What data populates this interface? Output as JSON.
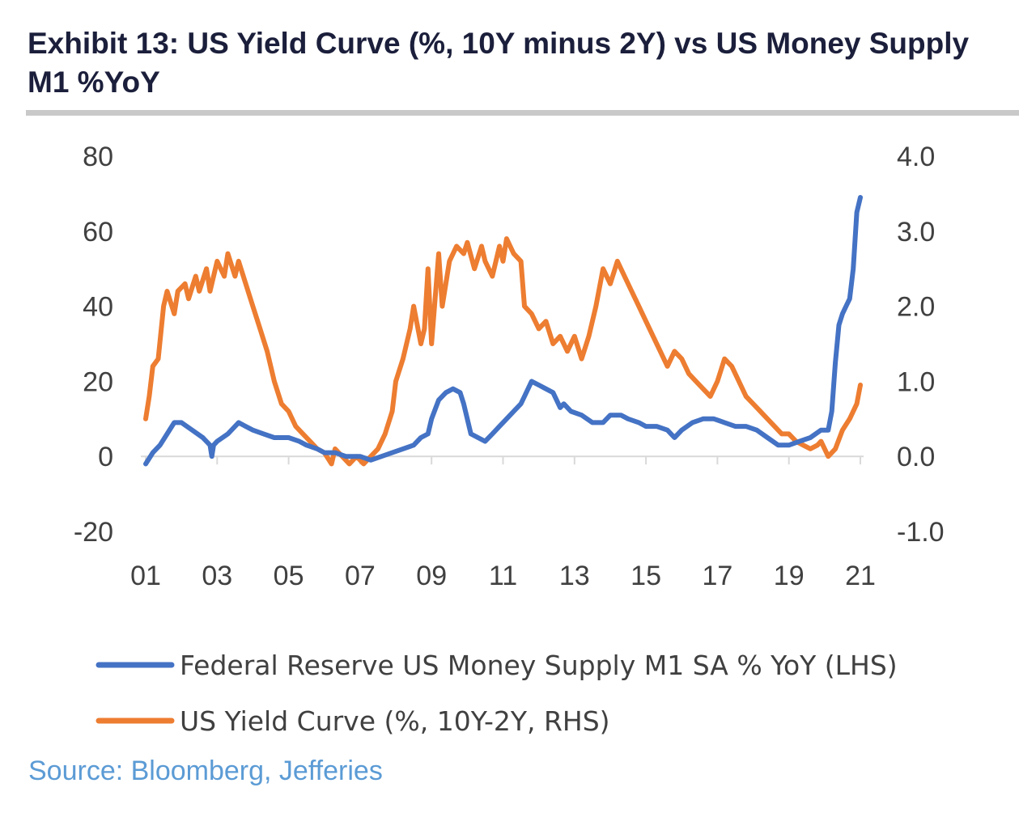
{
  "title": "Exhibit 13: US Yield Curve (%, 10Y minus 2Y) vs US Money Supply M1 %YoY",
  "source": "Source: Bloomberg, Jefferies",
  "colors": {
    "m1": "#4472c4",
    "curve": "#ed7d31",
    "axis": "#d9d9d9",
    "text": "#404040",
    "title": "#1b1f3b",
    "source": "#5b9bd5"
  },
  "chart_data": {
    "type": "line",
    "x_tick_labels": [
      "01",
      "03",
      "05",
      "07",
      "09",
      "11",
      "13",
      "15",
      "17",
      "19",
      "21"
    ],
    "xlim": [
      2001,
      2021
    ],
    "y_left": {
      "ticks": [
        "80",
        "60",
        "40",
        "20",
        "0",
        "-20"
      ],
      "ylim": [
        -20,
        80
      ]
    },
    "y_right": {
      "ticks": [
        "4.0",
        "3.0",
        "2.0",
        "1.0",
        "0.0",
        "-1.0"
      ],
      "ylim": [
        -1,
        4
      ]
    },
    "legend_position": "bottom",
    "series": [
      {
        "name": "Federal Reserve US Money Supply M1 SA % YoY (LHS)",
        "axis": "left",
        "x": [
          2001.0,
          2001.2,
          2001.4,
          2001.6,
          2001.8,
          2002.0,
          2002.3,
          2002.6,
          2002.8,
          2002.85,
          2002.9,
          2003.0,
          2003.3,
          2003.5,
          2003.6,
          2003.8,
          2004.0,
          2004.3,
          2004.6,
          2005.0,
          2005.3,
          2005.5,
          2005.8,
          2006.0,
          2006.3,
          2006.6,
          2007.0,
          2007.3,
          2007.6,
          2007.9,
          2008.2,
          2008.5,
          2008.7,
          2008.9,
          2009.0,
          2009.2,
          2009.4,
          2009.6,
          2009.8,
          2009.9,
          2010.1,
          2010.3,
          2010.5,
          2010.7,
          2010.9,
          2011.1,
          2011.3,
          2011.5,
          2011.6,
          2011.8,
          2012.0,
          2012.2,
          2012.4,
          2012.6,
          2012.7,
          2012.9,
          2013.2,
          2013.5,
          2013.8,
          2014.0,
          2014.3,
          2014.5,
          2014.8,
          2015.0,
          2015.3,
          2015.6,
          2015.8,
          2016.0,
          2016.3,
          2016.6,
          2016.9,
          2017.2,
          2017.5,
          2017.8,
          2018.1,
          2018.4,
          2018.7,
          2019.0,
          2019.3,
          2019.6,
          2019.9,
          2020.1,
          2020.2,
          2020.3,
          2020.4,
          2020.5,
          2020.6,
          2020.7,
          2020.8,
          2020.9,
          2021.0
        ],
        "values": [
          -2,
          1,
          3,
          6,
          9,
          9,
          7,
          5,
          3,
          0,
          3,
          4,
          6,
          8,
          9,
          8,
          7,
          6,
          5,
          5,
          4,
          3,
          2,
          1,
          1,
          0,
          0,
          -1,
          0,
          1,
          2,
          3,
          5,
          6,
          10,
          15,
          17,
          18,
          17,
          14,
          6,
          5,
          4,
          6,
          8,
          10,
          12,
          14,
          16,
          20,
          19,
          18,
          17,
          13,
          14,
          12,
          11,
          9,
          9,
          11,
          11,
          10,
          9,
          8,
          8,
          7,
          5,
          7,
          9,
          10,
          10,
          9,
          8,
          8,
          7,
          5,
          3,
          3,
          4,
          5,
          7,
          7,
          12,
          25,
          35,
          38,
          40,
          42,
          50,
          65,
          69
        ]
      },
      {
        "name": "US Yield Curve (%, 10Y-2Y, RHS)",
        "axis": "right",
        "x": [
          2001.0,
          2001.1,
          2001.2,
          2001.35,
          2001.5,
          2001.6,
          2001.8,
          2001.9,
          2002.1,
          2002.2,
          2002.4,
          2002.5,
          2002.7,
          2002.8,
          2003.0,
          2003.2,
          2003.3,
          2003.5,
          2003.6,
          2003.8,
          2004.0,
          2004.2,
          2004.4,
          2004.6,
          2004.8,
          2005.0,
          2005.2,
          2005.4,
          2005.6,
          2005.8,
          2006.0,
          2006.2,
          2006.3,
          2006.5,
          2006.7,
          2006.9,
          2007.1,
          2007.3,
          2007.5,
          2007.7,
          2007.9,
          2008.0,
          2008.2,
          2008.4,
          2008.5,
          2008.7,
          2008.8,
          2008.9,
          2009.0,
          2009.2,
          2009.3,
          2009.5,
          2009.7,
          2009.9,
          2010.0,
          2010.2,
          2010.4,
          2010.5,
          2010.7,
          2010.9,
          2011.0,
          2011.1,
          2011.3,
          2011.5,
          2011.6,
          2011.8,
          2012.0,
          2012.2,
          2012.4,
          2012.6,
          2012.8,
          2013.0,
          2013.2,
          2013.4,
          2013.6,
          2013.8,
          2014.0,
          2014.2,
          2014.4,
          2014.6,
          2014.8,
          2015.0,
          2015.2,
          2015.4,
          2015.6,
          2015.8,
          2016.0,
          2016.2,
          2016.4,
          2016.6,
          2016.8,
          2017.0,
          2017.2,
          2017.4,
          2017.6,
          2017.8,
          2018.0,
          2018.2,
          2018.4,
          2018.6,
          2018.8,
          2019.0,
          2019.2,
          2019.4,
          2019.6,
          2019.8,
          2019.9,
          2020.1,
          2020.3,
          2020.5,
          2020.7,
          2020.9,
          2021.0
        ],
        "values": [
          0.5,
          0.8,
          1.2,
          1.3,
          2.0,
          2.2,
          1.9,
          2.2,
          2.3,
          2.1,
          2.4,
          2.2,
          2.5,
          2.2,
          2.6,
          2.4,
          2.7,
          2.4,
          2.6,
          2.3,
          2.0,
          1.7,
          1.4,
          1.0,
          0.7,
          0.6,
          0.4,
          0.3,
          0.2,
          0.1,
          0.05,
          -0.1,
          0.1,
          0.0,
          -0.1,
          0.0,
          -0.1,
          0.0,
          0.1,
          0.3,
          0.6,
          1.0,
          1.3,
          1.7,
          2.0,
          1.5,
          1.7,
          2.5,
          1.5,
          2.7,
          2.0,
          2.6,
          2.8,
          2.7,
          2.85,
          2.5,
          2.8,
          2.6,
          2.4,
          2.8,
          2.6,
          2.9,
          2.7,
          2.6,
          2.0,
          1.9,
          1.7,
          1.8,
          1.5,
          1.6,
          1.4,
          1.6,
          1.3,
          1.6,
          2.0,
          2.5,
          2.3,
          2.6,
          2.4,
          2.2,
          2.0,
          1.8,
          1.6,
          1.4,
          1.2,
          1.4,
          1.3,
          1.1,
          1.0,
          0.9,
          0.8,
          1.0,
          1.3,
          1.2,
          1.0,
          0.8,
          0.7,
          0.6,
          0.5,
          0.4,
          0.3,
          0.3,
          0.2,
          0.15,
          0.1,
          0.15,
          0.2,
          0.0,
          0.1,
          0.35,
          0.5,
          0.7,
          0.95
        ]
      }
    ]
  }
}
